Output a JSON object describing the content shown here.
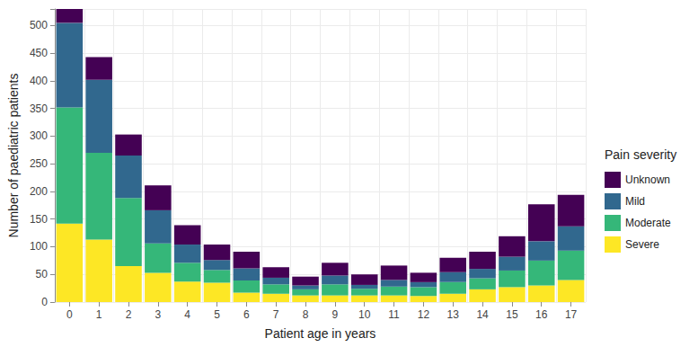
{
  "chart_data": {
    "type": "bar",
    "stacked": true,
    "x_label": "Patient age in years",
    "y_label": "Number of paediatric patients",
    "legend_title": "Pain severity",
    "legend": "right",
    "grid": true,
    "categories": [
      "0",
      "1",
      "2",
      "3",
      "4",
      "5",
      "6",
      "7",
      "8",
      "9",
      "10",
      "11",
      "12",
      "13",
      "14",
      "15",
      "16",
      "17"
    ],
    "series": [
      {
        "name": "Severe",
        "color": "#fde725",
        "values": [
          142,
          113,
          65,
          53,
          37,
          35,
          17,
          15,
          12,
          12,
          12,
          12,
          11,
          15,
          23,
          27,
          30,
          40
        ]
      },
      {
        "name": "Moderate",
        "color": "#35b779",
        "values": [
          210,
          157,
          123,
          53,
          34,
          23,
          22,
          17,
          11,
          20,
          12,
          16,
          16,
          21,
          20,
          30,
          45,
          53
        ]
      },
      {
        "name": "Mild",
        "color": "#31688e",
        "values": [
          153,
          132,
          77,
          60,
          33,
          18,
          22,
          12,
          7,
          16,
          7,
          12,
          9,
          18,
          17,
          25,
          35,
          44
        ]
      },
      {
        "name": "Unknown",
        "color": "#440154",
        "values": [
          25,
          41,
          38,
          45,
          35,
          28,
          30,
          19,
          16,
          23,
          19,
          26,
          17,
          26,
          31,
          37,
          67,
          57
        ]
      }
    ],
    "ylim": [
      0,
      530
    ],
    "yticks": [
      0,
      50,
      100,
      150,
      200,
      250,
      300,
      350,
      400,
      450,
      500
    ]
  }
}
